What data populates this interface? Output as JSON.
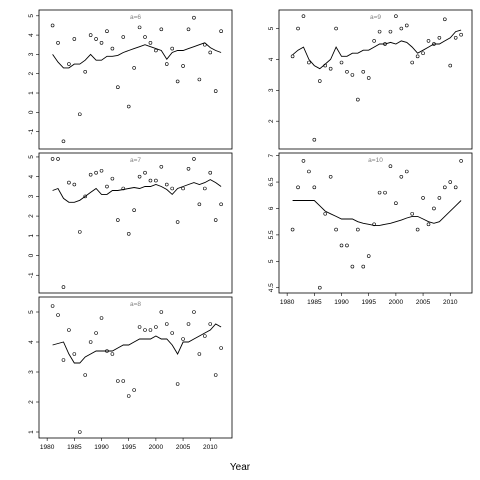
{
  "chart_data": {
    "type": "scatter",
    "xlabel": "Year",
    "panels": [
      {
        "label": "a=6",
        "ylim": [
          -1.9,
          5.3
        ],
        "yticks": [
          -1,
          0,
          1,
          2,
          3,
          4,
          5
        ],
        "xlim": [
          1978.5,
          2014
        ],
        "xticks": [],
        "points": {
          "x": [
            1981,
            1982,
            1983,
            1984,
            1985,
            1986,
            1987,
            1988,
            1989,
            1990,
            1991,
            1992,
            1993,
            1994,
            1995,
            1996,
            1997,
            1998,
            1999,
            2000,
            2001,
            2002,
            2003,
            2004,
            2005,
            2006,
            2007,
            2008,
            2009,
            2010,
            2011,
            2012
          ],
          "y": [
            4.5,
            3.6,
            -1.5,
            2.5,
            3.8,
            -0.1,
            2.1,
            4.0,
            3.8,
            3.6,
            4.2,
            3.3,
            1.3,
            3.9,
            0.3,
            2.3,
            4.4,
            3.9,
            3.6,
            3.2,
            4.3,
            2.5,
            3.3,
            1.6,
            2.4,
            4.3,
            4.9,
            1.7,
            3.5,
            3.1,
            1.1,
            4.2
          ]
        },
        "smooth": {
          "x": [
            1981,
            1982,
            1983,
            1984,
            1985,
            1986,
            1987,
            1988,
            1989,
            1990,
            1991,
            1992,
            1993,
            1994,
            1995,
            1996,
            1997,
            1998,
            1999,
            2000,
            2001,
            2002,
            2003,
            2004,
            2005,
            2006,
            2007,
            2008,
            2009,
            2010,
            2011,
            2012
          ],
          "y": [
            3.0,
            2.6,
            2.3,
            2.3,
            2.5,
            2.5,
            2.7,
            3.0,
            2.7,
            2.7,
            2.9,
            2.9,
            2.95,
            3.1,
            3.2,
            3.3,
            3.4,
            3.5,
            3.4,
            3.3,
            3.2,
            2.75,
            3.1,
            3.2,
            3.2,
            3.3,
            3.4,
            3.5,
            3.6,
            3.35,
            3.2,
            3.1
          ]
        }
      },
      {
        "label": "a=7",
        "ylim": [
          -1.9,
          5.2
        ],
        "yticks": [
          -1,
          0,
          1,
          2,
          3,
          4,
          5
        ],
        "xlim": [
          1978.5,
          2014
        ],
        "xticks": [],
        "points": {
          "x": [
            1981,
            1982,
            1983,
            1984,
            1985,
            1986,
            1987,
            1988,
            1989,
            1990,
            1991,
            1992,
            1993,
            1994,
            1995,
            1996,
            1997,
            1998,
            1999,
            2000,
            2001,
            2002,
            2003,
            2004,
            2005,
            2006,
            2007,
            2008,
            2009,
            2010,
            2011,
            2012
          ],
          "y": [
            4.9,
            4.9,
            -1.6,
            3.7,
            3.6,
            1.2,
            3.0,
            4.1,
            4.2,
            4.3,
            3.5,
            3.9,
            1.8,
            3.4,
            1.1,
            2.3,
            4.0,
            4.2,
            3.8,
            3.8,
            4.5,
            3.6,
            3.4,
            1.7,
            3.4,
            4.4,
            4.9,
            2.6,
            3.4,
            4.2,
            1.8,
            2.6
          ]
        },
        "smooth": {
          "x": [
            1981,
            1982,
            1983,
            1984,
            1985,
            1986,
            1987,
            1988,
            1989,
            1990,
            1991,
            1992,
            1993,
            1994,
            1995,
            1996,
            1997,
            1998,
            1999,
            2000,
            2001,
            2002,
            2003,
            2004,
            2005,
            2006,
            2007,
            2008,
            2009,
            2010,
            2011,
            2012
          ],
          "y": [
            3.3,
            3.4,
            2.9,
            2.7,
            2.7,
            2.8,
            3.0,
            3.2,
            3.4,
            3.1,
            3.1,
            3.3,
            3.3,
            3.35,
            3.4,
            3.45,
            3.4,
            3.5,
            3.5,
            3.6,
            3.5,
            3.35,
            3.1,
            3.4,
            3.5,
            3.6,
            3.7,
            3.6,
            3.7,
            3.85,
            3.7,
            3.5
          ]
        }
      },
      {
        "label": "a=8",
        "ylim": [
          0.8,
          5.5
        ],
        "yticks": [
          1,
          2,
          3,
          4,
          5
        ],
        "xlim": [
          1978.5,
          2014
        ],
        "xticks": [
          1980,
          1985,
          1990,
          1995,
          2000,
          2005,
          2010
        ],
        "points": {
          "x": [
            1981,
            1982,
            1983,
            1984,
            1985,
            1986,
            1987,
            1988,
            1989,
            1990,
            1991,
            1992,
            1993,
            1994,
            1995,
            1996,
            1997,
            1998,
            1999,
            2000,
            2001,
            2002,
            2003,
            2004,
            2005,
            2006,
            2007,
            2008,
            2009,
            2010,
            2011,
            2012
          ],
          "y": [
            5.2,
            4.9,
            3.4,
            4.4,
            3.6,
            1.0,
            2.9,
            4.0,
            4.3,
            4.8,
            3.7,
            3.6,
            2.7,
            2.7,
            2.2,
            2.4,
            4.5,
            4.4,
            4.4,
            4.5,
            5.0,
            4.6,
            4.3,
            2.6,
            4.1,
            4.6,
            5.0,
            3.6,
            4.2,
            4.6,
            2.9,
            3.8
          ]
        },
        "smooth": {
          "x": [
            1981,
            1982,
            1983,
            1984,
            1985,
            1986,
            1987,
            1988,
            1989,
            1990,
            1991,
            1992,
            1993,
            1994,
            1995,
            1996,
            1997,
            1998,
            1999,
            2000,
            2001,
            2002,
            2003,
            2004,
            2005,
            2006,
            2007,
            2008,
            2009,
            2010,
            2011,
            2012
          ],
          "y": [
            3.9,
            3.95,
            4.0,
            3.6,
            3.3,
            3.3,
            3.5,
            3.6,
            3.7,
            3.7,
            3.7,
            3.7,
            3.8,
            3.9,
            3.9,
            4.0,
            4.1,
            4.1,
            4.1,
            4.2,
            4.1,
            4.1,
            3.9,
            3.6,
            4.0,
            4.0,
            4.1,
            4.2,
            4.3,
            4.4,
            4.6,
            4.5
          ]
        }
      },
      {
        "label": "a=9",
        "ylim": [
          1.1,
          5.6
        ],
        "yticks": [
          2,
          3,
          4,
          5
        ],
        "xlim": [
          1978.5,
          2014
        ],
        "xticks": [],
        "points": {
          "x": [
            1981,
            1982,
            1983,
            1984,
            1985,
            1986,
            1987,
            1988,
            1989,
            1990,
            1991,
            1992,
            1993,
            1994,
            1995,
            1996,
            1997,
            1998,
            1999,
            2000,
            2001,
            2002,
            2003,
            2004,
            2005,
            2006,
            2007,
            2008,
            2009,
            2010,
            2011,
            2012
          ],
          "y": [
            4.1,
            5.0,
            5.4,
            3.9,
            1.4,
            3.3,
            3.8,
            3.7,
            5.0,
            3.9,
            3.6,
            3.5,
            2.7,
            3.6,
            3.4,
            4.6,
            4.9,
            4.5,
            4.9,
            5.4,
            5.0,
            5.1,
            3.9,
            4.1,
            4.2,
            4.6,
            4.5,
            4.7,
            5.3,
            3.8,
            4.7,
            4.8
          ]
        },
        "smooth": {
          "x": [
            1981,
            1982,
            1983,
            1984,
            1985,
            1986,
            1987,
            1988,
            1989,
            1990,
            1991,
            1992,
            1993,
            1994,
            1995,
            1996,
            1997,
            1998,
            1999,
            2000,
            2001,
            2002,
            2003,
            2004,
            2005,
            2006,
            2007,
            2008,
            2009,
            2010,
            2011,
            2012
          ],
          "y": [
            4.15,
            4.3,
            4.4,
            4.0,
            3.8,
            3.7,
            3.85,
            4.0,
            4.4,
            4.1,
            4.1,
            4.2,
            4.2,
            4.3,
            4.3,
            4.4,
            4.5,
            4.5,
            4.55,
            4.5,
            4.6,
            4.55,
            4.4,
            4.2,
            4.3,
            4.4,
            4.5,
            4.5,
            4.6,
            4.7,
            4.9,
            4.95
          ]
        }
      },
      {
        "label": "a=10",
        "ylim": [
          4.4,
          7.05
        ],
        "yticks": [
          4.5,
          5.0,
          5.5,
          6.0,
          6.5,
          7.0
        ],
        "xlim": [
          1978.5,
          2014
        ],
        "xticks": [
          1980,
          1985,
          1990,
          1995,
          2000,
          2005,
          2010
        ],
        "points": {
          "x": [
            1981,
            1982,
            1983,
            1984,
            1985,
            1986,
            1987,
            1988,
            1989,
            1990,
            1991,
            1992,
            1993,
            1994,
            1995,
            1996,
            1997,
            1998,
            1999,
            2000,
            2001,
            2002,
            2003,
            2004,
            2005,
            2006,
            2007,
            2008,
            2009,
            2010,
            2011,
            2012
          ],
          "y": [
            5.6,
            6.4,
            6.9,
            6.7,
            6.4,
            4.5,
            5.9,
            6.6,
            5.6,
            5.3,
            5.3,
            4.9,
            5.6,
            4.9,
            5.1,
            5.7,
            6.3,
            6.3,
            6.8,
            6.1,
            6.6,
            6.7,
            5.9,
            5.6,
            6.2,
            5.7,
            6.0,
            6.2,
            6.4,
            6.5,
            6.4,
            6.9
          ]
        },
        "smooth": {
          "x": [
            1981,
            1982,
            1983,
            1984,
            1985,
            1986,
            1987,
            1988,
            1989,
            1990,
            1991,
            1992,
            1993,
            1994,
            1995,
            1996,
            1997,
            1998,
            1999,
            2000,
            2001,
            2002,
            2003,
            2004,
            2005,
            2006,
            2007,
            2008,
            2009,
            2010,
            2011,
            2012
          ],
          "y": [
            6.15,
            6.15,
            6.15,
            6.15,
            6.15,
            6.05,
            5.95,
            5.9,
            5.85,
            5.8,
            5.8,
            5.8,
            5.75,
            5.72,
            5.7,
            5.68,
            5.68,
            5.7,
            5.72,
            5.75,
            5.78,
            5.82,
            5.85,
            5.85,
            5.8,
            5.75,
            5.72,
            5.75,
            5.85,
            5.95,
            6.05,
            6.15
          ]
        }
      }
    ]
  }
}
